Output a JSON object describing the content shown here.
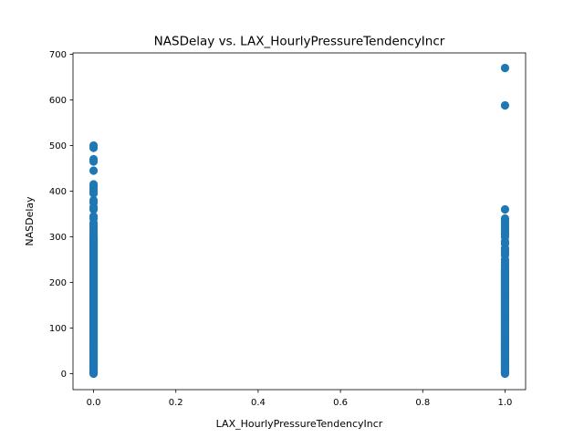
{
  "chart_data": {
    "type": "scatter",
    "title": "NASDelay vs. LAX_HourlyPressureTendencyIncr",
    "xlabel": "LAX_HourlyPressureTendencyIncr",
    "ylabel": "NASDelay",
    "xlim": [
      -0.05,
      1.05
    ],
    "ylim": [
      -35,
      703
    ],
    "xticks": [
      0.0,
      0.2,
      0.4,
      0.6,
      0.8,
      1.0
    ],
    "xtick_labels": [
      "0.0",
      "0.2",
      "0.4",
      "0.6",
      "0.8",
      "1.0"
    ],
    "yticks": [
      0,
      100,
      200,
      300,
      400,
      500,
      600,
      700
    ],
    "ytick_labels": [
      "0",
      "100",
      "200",
      "300",
      "400",
      "500",
      "600",
      "700"
    ],
    "grid": false,
    "marker_color": "#1f77b4",
    "series": [
      {
        "x_value": 0,
        "dense_range": [
          0,
          300
        ],
        "y_extra": [
          305,
          310,
          315,
          320,
          325,
          330,
          340,
          345,
          360,
          365,
          375,
          380,
          395,
          400,
          405,
          410,
          415,
          445,
          465,
          470,
          495,
          500
        ]
      },
      {
        "x_value": 1,
        "dense_range": [
          0,
          230
        ],
        "y_extra": [
          235,
          240,
          245,
          250,
          260,
          265,
          270,
          275,
          285,
          290,
          300,
          305,
          310,
          315,
          320,
          325,
          330,
          335,
          340,
          360,
          588,
          670
        ]
      }
    ]
  }
}
